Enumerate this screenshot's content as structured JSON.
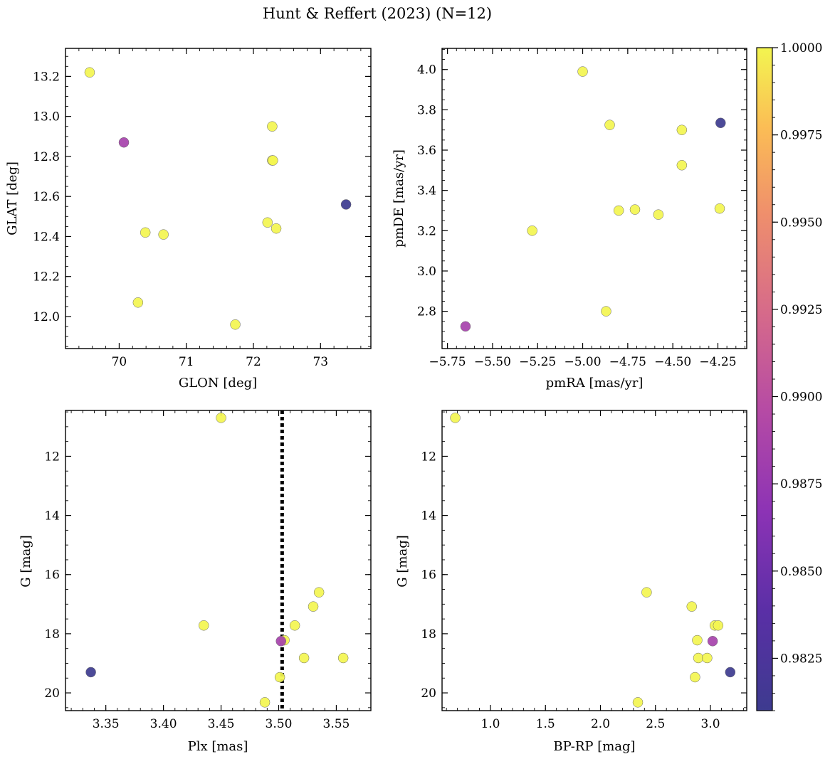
{
  "figure": {
    "title": "Hunt & Reffert (2023) (N=12)"
  },
  "chart_data": [
    {
      "type": "scatter",
      "id": "glon-glat",
      "xlabel": "GLON [deg]",
      "ylabel": "GLAT [deg]",
      "xlim": [
        69.2,
        73.75
      ],
      "ylim": [
        11.84,
        13.34
      ],
      "y_inverted": false,
      "xticks": [
        70,
        71,
        72,
        73
      ],
      "xtick_labels": [
        "70",
        "71",
        "72",
        "73"
      ],
      "xminor": 0.2,
      "yticks": [
        12.0,
        12.2,
        12.4,
        12.6,
        12.8,
        13.0,
        13.2
      ],
      "ytick_labels": [
        "12.0",
        "12.2",
        "12.4",
        "12.6",
        "12.8",
        "13.0",
        "13.2"
      ],
      "yminor": 0.05,
      "points": [
        {
          "x": 69.56,
          "y": 13.22,
          "c": 1.0
        },
        {
          "x": 70.07,
          "y": 12.87,
          "c": 0.9885
        },
        {
          "x": 72.28,
          "y": 12.95,
          "c": 1.0
        },
        {
          "x": 72.28,
          "y": 12.78,
          "c": 1.0
        },
        {
          "x": 72.29,
          "y": 12.78,
          "c": 1.0
        },
        {
          "x": 73.38,
          "y": 12.56,
          "c": 0.981
        },
        {
          "x": 70.39,
          "y": 12.42,
          "c": 1.0
        },
        {
          "x": 70.66,
          "y": 12.41,
          "c": 1.0
        },
        {
          "x": 72.21,
          "y": 12.47,
          "c": 1.0
        },
        {
          "x": 72.34,
          "y": 12.44,
          "c": 1.0
        },
        {
          "x": 70.28,
          "y": 12.07,
          "c": 1.0
        },
        {
          "x": 71.73,
          "y": 11.96,
          "c": 1.0
        }
      ]
    },
    {
      "type": "scatter",
      "id": "pmra-pmde",
      "xlabel": "pmRA [mas/yr]",
      "ylabel": "pmDE [mas/yr]",
      "xlim": [
        -5.78,
        -4.09
      ],
      "ylim": [
        2.615,
        4.105
      ],
      "y_inverted": false,
      "xticks": [
        -5.75,
        -5.5,
        -5.25,
        -5.0,
        -4.75,
        -4.5,
        -4.25
      ],
      "xtick_labels": [
        "−5.75",
        "−5.50",
        "−5.25",
        "−5.00",
        "−4.75",
        "−4.50",
        "−4.25"
      ],
      "xminor": 0.05,
      "yticks": [
        2.8,
        3.0,
        3.2,
        3.4,
        3.6,
        3.8,
        4.0
      ],
      "ytick_labels": [
        "2.8",
        "3.0",
        "3.2",
        "3.4",
        "3.6",
        "3.8",
        "4.0"
      ],
      "yminor": 0.05,
      "points": [
        {
          "x": -5.0,
          "y": 3.99,
          "c": 1.0
        },
        {
          "x": -4.85,
          "y": 3.725,
          "c": 1.0
        },
        {
          "x": -4.45,
          "y": 3.7,
          "c": 1.0
        },
        {
          "x": -4.235,
          "y": 3.735,
          "c": 0.981
        },
        {
          "x": -4.45,
          "y": 3.525,
          "c": 1.0
        },
        {
          "x": -4.8,
          "y": 3.3,
          "c": 1.0
        },
        {
          "x": -4.71,
          "y": 3.305,
          "c": 1.0
        },
        {
          "x": -4.58,
          "y": 3.28,
          "c": 1.0
        },
        {
          "x": -4.24,
          "y": 3.31,
          "c": 1.0
        },
        {
          "x": -5.28,
          "y": 3.2,
          "c": 1.0
        },
        {
          "x": -4.87,
          "y": 2.8,
          "c": 1.0
        },
        {
          "x": -5.65,
          "y": 2.725,
          "c": 0.9885
        }
      ]
    },
    {
      "type": "scatter",
      "id": "plx-g",
      "xlabel": "Plx [mas]",
      "ylabel": "G [mag]",
      "xlim": [
        3.315,
        3.58
      ],
      "ylim": [
        10.45,
        20.6
      ],
      "y_inverted": true,
      "vline": {
        "x": 3.503,
        "style": "dotted"
      },
      "xticks": [
        3.35,
        3.4,
        3.45,
        3.5,
        3.55
      ],
      "xtick_labels": [
        "3.35",
        "3.40",
        "3.45",
        "3.50",
        "3.55"
      ],
      "xminor": 0.01,
      "yticks": [
        12,
        14,
        16,
        18,
        20
      ],
      "ytick_labels": [
        "12",
        "14",
        "16",
        "18",
        "20"
      ],
      "yminor": 0.5,
      "points": [
        {
          "x": 3.45,
          "y": 10.7,
          "c": 1.0
        },
        {
          "x": 3.535,
          "y": 16.6,
          "c": 1.0
        },
        {
          "x": 3.53,
          "y": 17.08,
          "c": 1.0
        },
        {
          "x": 3.435,
          "y": 17.72,
          "c": 1.0
        },
        {
          "x": 3.514,
          "y": 17.72,
          "c": 1.0
        },
        {
          "x": 3.502,
          "y": 18.25,
          "c": 0.9885
        },
        {
          "x": 3.505,
          "y": 18.22,
          "c": 1.0
        },
        {
          "x": 3.522,
          "y": 18.82,
          "c": 1.0
        },
        {
          "x": 3.556,
          "y": 18.82,
          "c": 1.0
        },
        {
          "x": 3.337,
          "y": 19.3,
          "c": 0.981
        },
        {
          "x": 3.501,
          "y": 19.47,
          "c": 1.0
        },
        {
          "x": 3.488,
          "y": 20.32,
          "c": 1.0
        }
      ]
    },
    {
      "type": "scatter",
      "id": "bprp-g",
      "xlabel": "BP-RP [mag]",
      "ylabel": "G [mag]",
      "xlim": [
        0.56,
        3.33
      ],
      "ylim": [
        10.45,
        20.6
      ],
      "y_inverted": true,
      "xticks": [
        1.0,
        1.5,
        2.0,
        2.5,
        3.0
      ],
      "xtick_labels": [
        "1.0",
        "1.5",
        "2.0",
        "2.5",
        "3.0"
      ],
      "xminor": 0.1,
      "yticks": [
        12,
        14,
        16,
        18,
        20
      ],
      "ytick_labels": [
        "12",
        "14",
        "16",
        "18",
        "20"
      ],
      "yminor": 0.5,
      "points": [
        {
          "x": 0.68,
          "y": 10.7,
          "c": 1.0
        },
        {
          "x": 2.42,
          "y": 16.6,
          "c": 1.0
        },
        {
          "x": 2.83,
          "y": 17.08,
          "c": 1.0
        },
        {
          "x": 3.04,
          "y": 17.72,
          "c": 1.0
        },
        {
          "x": 3.07,
          "y": 17.72,
          "c": 1.0
        },
        {
          "x": 2.88,
          "y": 18.22,
          "c": 1.0
        },
        {
          "x": 3.02,
          "y": 18.25,
          "c": 0.9885
        },
        {
          "x": 2.89,
          "y": 18.82,
          "c": 1.0
        },
        {
          "x": 2.97,
          "y": 18.82,
          "c": 1.0
        },
        {
          "x": 3.18,
          "y": 19.3,
          "c": 0.981
        },
        {
          "x": 2.86,
          "y": 19.47,
          "c": 1.0
        },
        {
          "x": 2.34,
          "y": 20.32,
          "c": 1.0
        }
      ]
    }
  ],
  "colorbar": {
    "colormap": "plasma",
    "vmin": 0.981,
    "vmax": 1.0,
    "ticks": [
      0.9825,
      0.985,
      0.9875,
      0.99,
      0.9925,
      0.995,
      0.9975,
      1.0
    ],
    "tick_labels": [
      "0.9825",
      "0.9850",
      "0.9875",
      "0.9900",
      "0.9925",
      "0.9950",
      "0.9975",
      "1.0000"
    ],
    "minor": 0.0005
  }
}
